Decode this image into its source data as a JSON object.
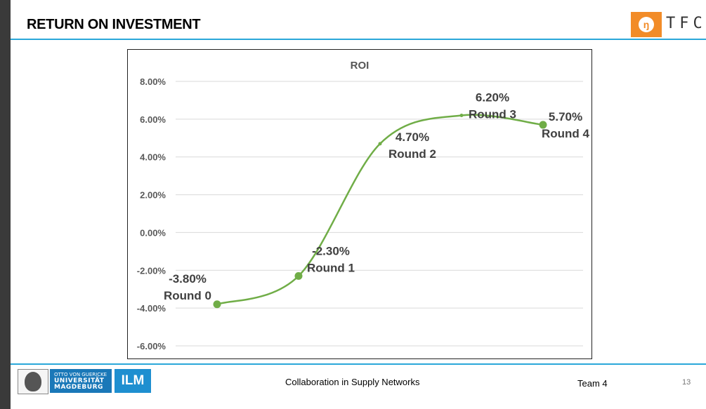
{
  "slide": {
    "title": "RETURN ON INVESTMENT",
    "footer_text": "Collaboration in Supply Networks",
    "team": "Team 4",
    "page_number": "13"
  },
  "logos": {
    "tfc_glyph": "ŋ",
    "tfc_text": "TFC",
    "university_line1": "OTTO VON GUERICKE",
    "university_line2": "UNIVERSITÄT",
    "university_line3": "MAGDEBURG",
    "ilm_text": "ILM"
  },
  "colors": {
    "accent_rule": "#2aa7d9",
    "series_line": "#70ad47",
    "tfc_orange": "#f28c28"
  },
  "chart_data": {
    "type": "line",
    "title": "ROI",
    "categories": [
      "Round 0",
      "Round 1",
      "Round 2",
      "Round 3",
      "Round 4"
    ],
    "series": [
      {
        "values": [
          -0.038,
          -0.023,
          0.047,
          0.062,
          0.057
        ]
      }
    ],
    "data_labels": [
      "-3.80%",
      "-2.30%",
      "4.70%",
      "6.20%",
      "5.70%"
    ],
    "y_ticks": [
      "8.00%",
      "6.00%",
      "4.00%",
      "2.00%",
      "0.00%",
      "-2.00%",
      "-4.00%",
      "-6.00%"
    ],
    "y_tick_values": [
      0.08,
      0.06,
      0.04,
      0.02,
      0.0,
      -0.02,
      -0.04,
      -0.06
    ],
    "ylim": [
      -0.06,
      0.08
    ],
    "smoothed": true,
    "grid": true,
    "legend": "none"
  }
}
